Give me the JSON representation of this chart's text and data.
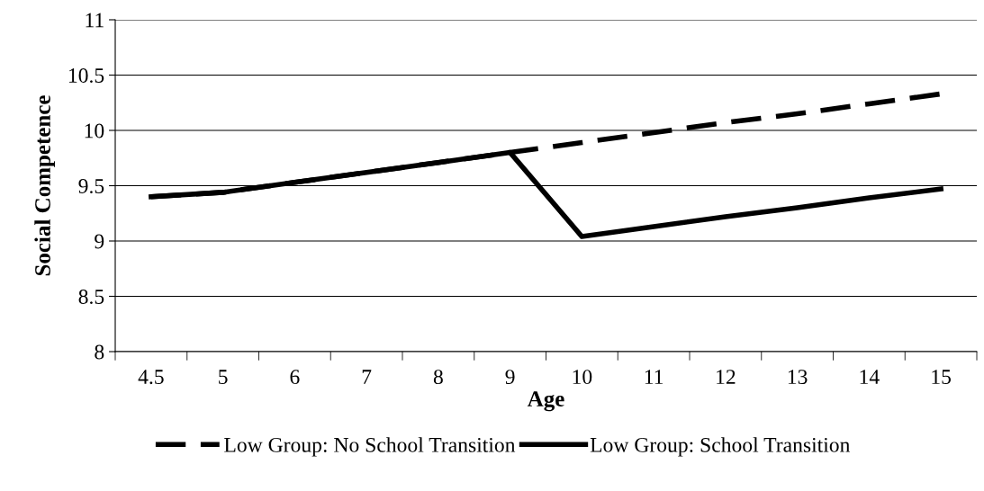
{
  "chart_data": {
    "type": "line",
    "xlabel": "Age",
    "ylabel": "Social Competence",
    "categories": [
      "4.5",
      "5",
      "6",
      "7",
      "8",
      "9",
      "10",
      "11",
      "12",
      "13",
      "14",
      "15"
    ],
    "series": [
      {
        "name": "Low Group: No School Transition",
        "color": "#000000",
        "line_style": "dashed",
        "values": [
          9.4,
          9.44,
          9.53,
          9.62,
          9.71,
          9.8,
          9.89,
          9.98,
          10.07,
          10.15,
          10.24,
          10.33
        ]
      },
      {
        "name": "Low Group: School Transition",
        "color": "#000000",
        "line_style": "solid",
        "values": [
          9.4,
          9.44,
          9.53,
          9.62,
          9.71,
          9.8,
          9.04,
          9.13,
          9.22,
          9.3,
          9.39,
          9.47
        ]
      }
    ],
    "ylim": [
      8,
      11
    ],
    "yticks": [
      8,
      8.5,
      9,
      9.5,
      10,
      10.5,
      11
    ],
    "grid": "y",
    "legend": "bottom",
    "marker": "none"
  }
}
